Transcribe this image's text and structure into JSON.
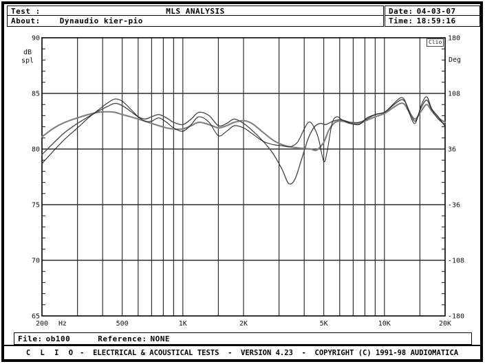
{
  "header": {
    "test_label": "Test :",
    "title": "MLS ANALYSIS",
    "date_label": "Date:",
    "date_value": "04-03-07",
    "about_label": "About:",
    "about_value": "Dynaudio kier-pio",
    "time_label": "Time:",
    "time_value": "18:59:16"
  },
  "watermark": "Clio",
  "file_bar": {
    "file_label": "File:",
    "file_value": "ob100",
    "reference_label": "Reference:",
    "reference_value": "NONE"
  },
  "footer": {
    "brand": "C L I O",
    "text": "-  ELECTRICAL & ACOUSTICAL TESTS  -  VERSION 4.23  -  COPYRIGHT (C) 1991-98 AUDIOMATICA"
  },
  "colors": {
    "background": "#ffffff",
    "frame": "#000000",
    "grid": "#2e2e2e",
    "plot_border": "#000000"
  },
  "chart_data": {
    "type": "line",
    "title": "MLS ANALYSIS",
    "x_scale": "log",
    "x_range": [
      200,
      20000
    ],
    "xlabel_unit": "Hz",
    "ylabel_left": [
      "dB",
      "spl"
    ],
    "ylabel_right": "Deg",
    "y_left_range": [
      65,
      90
    ],
    "y_right_range": [
      -180,
      180
    ],
    "grid": true,
    "x_gridlines": [
      300,
      400,
      500,
      600,
      700,
      800,
      900,
      1000,
      1500,
      2000,
      3000,
      4000,
      5000,
      6000,
      7000,
      8000,
      9000,
      10000,
      15000
    ],
    "x_ticks": [
      {
        "f": 200,
        "label": "200"
      },
      {
        "f": 500,
        "label": "500"
      },
      {
        "f": 1000,
        "label": "1K"
      },
      {
        "f": 2000,
        "label": "2K"
      },
      {
        "f": 5000,
        "label": "5K"
      },
      {
        "f": 10000,
        "label": "10K"
      },
      {
        "f": 20000,
        "label": "20K"
      }
    ],
    "y_left_ticks": [
      {
        "db": 90,
        "label": "90"
      },
      {
        "db": 85,
        "label": "85"
      },
      {
        "db": 80,
        "label": "80"
      },
      {
        "db": 75,
        "label": "75"
      },
      {
        "db": 70,
        "label": "70"
      },
      {
        "db": 65,
        "label": "65"
      }
    ],
    "y_right_ticks": [
      {
        "deg": 180,
        "label": "180"
      },
      {
        "deg": 108,
        "label": "108"
      },
      {
        "deg": 36,
        "label": "36"
      },
      {
        "deg": -36,
        "label": "-36"
      },
      {
        "deg": -108,
        "label": "-108"
      },
      {
        "deg": -180,
        "label": "-180"
      }
    ],
    "minor_tick_step_db": 1,
    "series": [
      {
        "name": "trace-1",
        "color": "#828282",
        "width": 2.2,
        "points": [
          [
            200,
            81.1
          ],
          [
            230,
            81.9
          ],
          [
            260,
            82.4
          ],
          [
            300,
            82.8
          ],
          [
            340,
            83.1
          ],
          [
            380,
            83.3
          ],
          [
            420,
            83.35
          ],
          [
            460,
            83.3
          ],
          [
            500,
            83.1
          ],
          [
            550,
            82.9
          ],
          [
            600,
            82.7
          ],
          [
            650,
            82.5
          ],
          [
            700,
            82.3
          ],
          [
            760,
            82.1
          ],
          [
            830,
            81.9
          ],
          [
            900,
            81.8
          ],
          [
            1000,
            81.8
          ],
          [
            1100,
            82.1
          ],
          [
            1200,
            82.4
          ],
          [
            1350,
            82.2
          ],
          [
            1500,
            81.9
          ],
          [
            1650,
            82.1
          ],
          [
            1800,
            82.4
          ],
          [
            2000,
            82.55
          ],
          [
            2200,
            82.3
          ],
          [
            2500,
            81.5
          ],
          [
            2800,
            80.8
          ],
          [
            3100,
            80.4
          ],
          [
            3400,
            80.2
          ],
          [
            3700,
            80.1
          ],
          [
            4000,
            80.05
          ],
          [
            4300,
            80.0
          ],
          [
            4600,
            79.9
          ],
          [
            5000,
            80.6
          ],
          [
            5300,
            81.7
          ],
          [
            5700,
            82.4
          ],
          [
            6200,
            82.5
          ],
          [
            6800,
            82.3
          ],
          [
            7500,
            82.3
          ],
          [
            8200,
            82.6
          ],
          [
            9000,
            82.9
          ],
          [
            10000,
            83.2
          ],
          [
            11000,
            83.7
          ],
          [
            12000,
            84.1
          ],
          [
            12600,
            84.0
          ],
          [
            13300,
            83.3
          ],
          [
            14200,
            82.7
          ],
          [
            15200,
            83.4
          ],
          [
            16200,
            84.0
          ],
          [
            17200,
            83.4
          ],
          [
            18500,
            82.8
          ],
          [
            20000,
            82.4
          ]
        ]
      },
      {
        "name": "trace-2",
        "color": "#4a4a4a",
        "width": 1.4,
        "points": [
          [
            200,
            79.5
          ],
          [
            230,
            80.6
          ],
          [
            260,
            81.5
          ],
          [
            300,
            82.3
          ],
          [
            340,
            82.9
          ],
          [
            380,
            83.4
          ],
          [
            420,
            83.8
          ],
          [
            460,
            84.1
          ],
          [
            500,
            83.9
          ],
          [
            550,
            83.4
          ],
          [
            600,
            82.9
          ],
          [
            650,
            82.7
          ],
          [
            700,
            82.9
          ],
          [
            760,
            83.1
          ],
          [
            830,
            82.8
          ],
          [
            900,
            82.4
          ],
          [
            1000,
            82.2
          ],
          [
            1100,
            82.7
          ],
          [
            1200,
            83.3
          ],
          [
            1350,
            83.0
          ],
          [
            1500,
            82.1
          ],
          [
            1650,
            82.3
          ],
          [
            1800,
            82.7
          ],
          [
            2000,
            82.3
          ],
          [
            2200,
            81.7
          ],
          [
            2500,
            80.7
          ],
          [
            2800,
            79.6
          ],
          [
            3100,
            78.2
          ],
          [
            3350,
            76.9
          ],
          [
            3600,
            77.3
          ],
          [
            3900,
            79.2
          ],
          [
            4200,
            81.0
          ],
          [
            4500,
            82.0
          ],
          [
            4800,
            82.3
          ],
          [
            5100,
            82.2
          ],
          [
            5400,
            82.4
          ],
          [
            5800,
            82.6
          ],
          [
            6200,
            82.6
          ],
          [
            6800,
            82.4
          ],
          [
            7500,
            82.4
          ],
          [
            8200,
            82.7
          ],
          [
            9000,
            83.1
          ],
          [
            10000,
            83.3
          ],
          [
            11000,
            83.9
          ],
          [
            12000,
            84.4
          ],
          [
            12600,
            84.3
          ],
          [
            13300,
            83.4
          ],
          [
            14200,
            82.5
          ],
          [
            15200,
            83.7
          ],
          [
            16200,
            84.4
          ],
          [
            17200,
            83.5
          ],
          [
            18500,
            82.7
          ],
          [
            20000,
            82.2
          ]
        ]
      },
      {
        "name": "trace-3",
        "color": "#1e1e1e",
        "width": 1.0,
        "points": [
          [
            200,
            78.7
          ],
          [
            230,
            79.9
          ],
          [
            260,
            80.9
          ],
          [
            300,
            81.9
          ],
          [
            340,
            82.8
          ],
          [
            380,
            83.5
          ],
          [
            420,
            84.1
          ],
          [
            460,
            84.5
          ],
          [
            500,
            84.3
          ],
          [
            550,
            83.6
          ],
          [
            600,
            82.9
          ],
          [
            650,
            82.5
          ],
          [
            700,
            82.5
          ],
          [
            760,
            82.8
          ],
          [
            830,
            82.4
          ],
          [
            900,
            81.9
          ],
          [
            1000,
            81.6
          ],
          [
            1100,
            82.2
          ],
          [
            1200,
            82.9
          ],
          [
            1350,
            82.4
          ],
          [
            1500,
            81.2
          ],
          [
            1650,
            81.6
          ],
          [
            1800,
            82.1
          ],
          [
            2000,
            81.9
          ],
          [
            2200,
            81.4
          ],
          [
            2500,
            80.7
          ],
          [
            2800,
            80.4
          ],
          [
            3100,
            80.3
          ],
          [
            3400,
            80.2
          ],
          [
            3700,
            80.6
          ],
          [
            4000,
            81.8
          ],
          [
            4200,
            82.4
          ],
          [
            4400,
            82.2
          ],
          [
            4700,
            81.0
          ],
          [
            5000,
            78.9
          ],
          [
            5200,
            79.8
          ],
          [
            5500,
            82.3
          ],
          [
            5800,
            82.9
          ],
          [
            6200,
            82.6
          ],
          [
            6800,
            82.3
          ],
          [
            7500,
            82.2
          ],
          [
            8200,
            82.8
          ],
          [
            9000,
            83.1
          ],
          [
            10000,
            83.3
          ],
          [
            11000,
            84.0
          ],
          [
            12000,
            84.6
          ],
          [
            12600,
            84.4
          ],
          [
            13300,
            83.2
          ],
          [
            14200,
            82.3
          ],
          [
            15200,
            83.9
          ],
          [
            16200,
            84.7
          ],
          [
            17200,
            83.6
          ],
          [
            18500,
            82.9
          ],
          [
            20000,
            82.0
          ]
        ]
      }
    ]
  }
}
